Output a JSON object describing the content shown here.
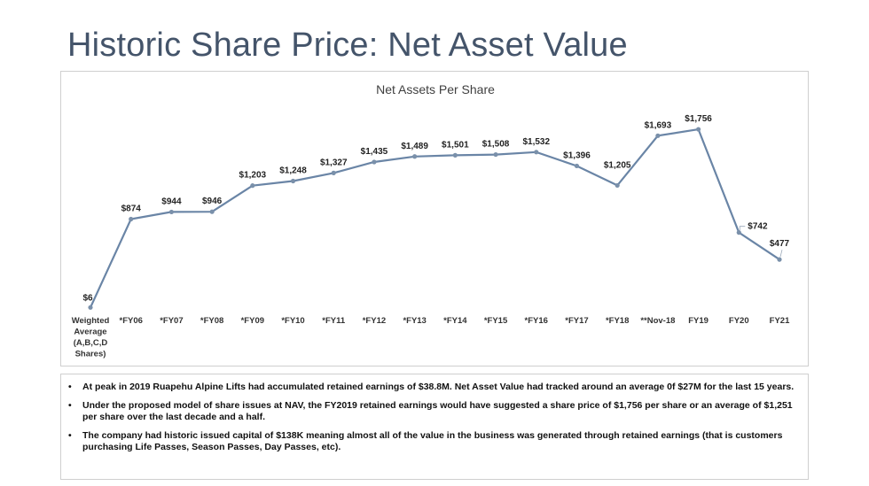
{
  "page": {
    "title": "Historic Share Price: Net Asset Value"
  },
  "colors": {
    "title": "#44546a",
    "line": "#6a85a6",
    "marker": "#7a90aa",
    "label": "#222222"
  },
  "chart_data": {
    "type": "line",
    "title": "Net Assets Per Share",
    "categories": [
      "Weighted Average (A,B,C,D Shares)",
      "*FY06",
      "*FY07",
      "*FY08",
      "*FY09",
      "*FY10",
      "*FY11",
      "*FY12",
      "*FY13",
      "*FY14",
      "*FY15",
      "*FY16",
      "*FY17",
      "*FY18",
      "**Nov-18",
      "FY19",
      "FY20",
      "FY21"
    ],
    "category_lines": [
      [
        "Weighted",
        "Average",
        "(A,B,C,D",
        "Shares)"
      ],
      [
        "*FY06"
      ],
      [
        "*FY07"
      ],
      [
        "*FY08"
      ],
      [
        "*FY09"
      ],
      [
        "*FY10"
      ],
      [
        "*FY11"
      ],
      [
        "*FY12"
      ],
      [
        "*FY13"
      ],
      [
        "*FY14"
      ],
      [
        "*FY15"
      ],
      [
        "*FY16"
      ],
      [
        "*FY17"
      ],
      [
        "*FY18"
      ],
      [
        "**Nov-18"
      ],
      [
        "FY19"
      ],
      [
        "FY20"
      ],
      [
        "FY21"
      ]
    ],
    "values": [
      6,
      874,
      944,
      946,
      1203,
      1248,
      1327,
      1435,
      1489,
      1501,
      1508,
      1532,
      1396,
      1205,
      1693,
      1756,
      742,
      477
    ],
    "data_labels": [
      "$6",
      "$874",
      "$944",
      "$946",
      "$1,203",
      "$1,248",
      "$1,327",
      "$1,435",
      "$1,489",
      "$1,501",
      "$1,508",
      "$1,532",
      "$1,396",
      "$1,205",
      "$1,693",
      "$1,756",
      "$742",
      "$477"
    ],
    "ylim": [
      0,
      1800
    ],
    "grid": false,
    "legend": "none"
  },
  "bullets": [
    "At peak in 2019 Ruapehu Alpine Lifts had accumulated retained earnings of $38.8M. Net Asset Value had tracked around an average 0f $27M for the last 15 years.",
    "Under the proposed model of share issues at NAV, the FY2019 retained earnings would have suggested a share price of $1,756 per share or an average of $1,251 per share over the last decade and a half.",
    "The company had historic issued capital of $138K meaning almost all of the value in the business was generated through retained earnings (that is customers purchasing Life Passes, Season Passes, Day Passes, etc)."
  ],
  "bullet_symbol": "•"
}
